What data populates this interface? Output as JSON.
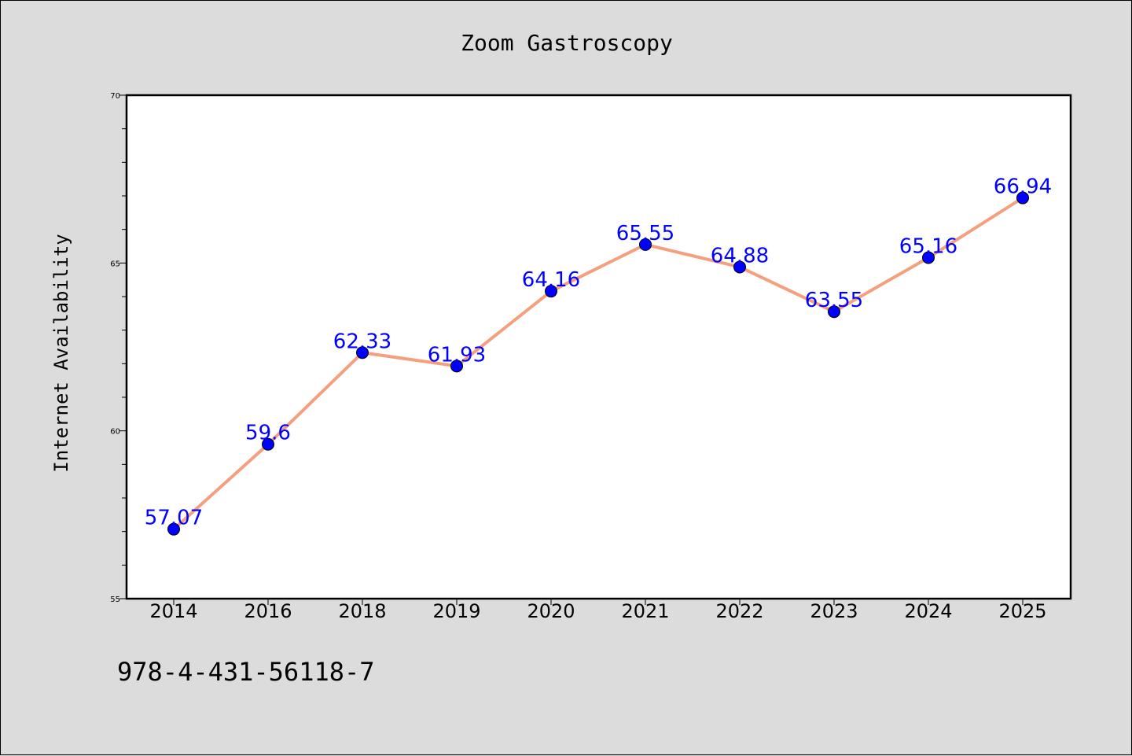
{
  "chart_data": {
    "type": "line",
    "title": "Zoom Gastroscopy",
    "xlabel": "",
    "ylabel": "Internet Availability",
    "categories": [
      "2014",
      "2016",
      "2018",
      "2019",
      "2020",
      "2021",
      "2022",
      "2023",
      "2024",
      "2025"
    ],
    "series": [
      {
        "values": [
          57.07,
          59.6,
          62.33,
          61.93,
          64.16,
          65.55,
          64.88,
          63.55,
          65.16,
          66.94
        ]
      }
    ],
    "data_labels": [
      "57.07",
      "59.6",
      "62.33",
      "61.93",
      "64.16",
      "65.55",
      "64.88",
      "63.55",
      "65.16",
      "66.94"
    ],
    "ylim": [
      55,
      70
    ],
    "y_ticks": [
      "55",
      "60",
      "65",
      "70"
    ],
    "grid": false,
    "legend": "none",
    "colors": {
      "line": "#f4a07e",
      "marker": "#0000ff",
      "label": "#0000ff",
      "plot_background": "#ffffff",
      "page_background": "#dcdcdc"
    }
  },
  "footer": {
    "code": "978-4-431-56118-7"
  }
}
